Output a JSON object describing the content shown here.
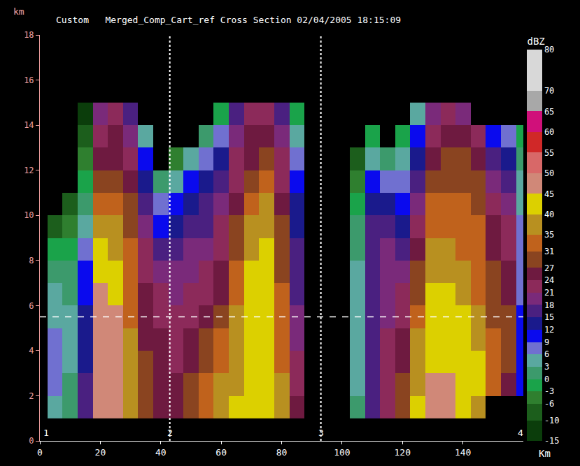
{
  "chart_data": {
    "type": "heatmap",
    "title": "Custom   Merged_Comp_Cart_ref Cross Section 02/04/2005 18:15:09",
    "x_label": "Km",
    "y_label": "km",
    "x": [
      0,
      5,
      10,
      15,
      20,
      25,
      30,
      35,
      40,
      45,
      50,
      55,
      60,
      65,
      70,
      75,
      80,
      85,
      90,
      95,
      100,
      105,
      110,
      115,
      120,
      125,
      130,
      135,
      140,
      145,
      150,
      155,
      160
    ],
    "y": [
      1.5,
      2.5,
      3.5,
      4.5,
      5.5,
      6.5,
      7.5,
      8.5,
      9.5,
      10.5,
      11.5,
      12.5,
      13.5,
      14.5
    ],
    "cells": [
      [
        null,
        null,
        null,
        null,
        null,
        null,
        null,
        null,
        null,
        null,
        null,
        null,
        null,
        null
      ],
      [
        3,
        6,
        6,
        6,
        3,
        3,
        0,
        -3,
        -10,
        null,
        null,
        null,
        null,
        null
      ],
      [
        0,
        0,
        3,
        3,
        3,
        0,
        0,
        -3,
        -6,
        -10,
        null,
        null,
        null,
        null
      ],
      [
        15,
        15,
        12,
        12,
        12,
        9,
        9,
        6,
        3,
        0,
        -3,
        -6,
        -10,
        -15
      ],
      [
        45,
        45,
        45,
        45,
        45,
        45,
        40,
        40,
        35,
        31,
        27,
        24,
        21,
        18
      ],
      [
        45,
        45,
        45,
        45,
        45,
        40,
        40,
        35,
        35,
        31,
        27,
        24,
        24,
        21
      ],
      [
        35,
        35,
        35,
        35,
        31,
        31,
        31,
        31,
        27,
        27,
        24,
        21,
        18,
        15
      ],
      [
        27,
        27,
        27,
        24,
        24,
        24,
        21,
        21,
        18,
        15,
        12,
        9,
        3,
        null
      ],
      [
        24,
        24,
        24,
        24,
        21,
        21,
        18,
        15,
        9,
        6,
        0,
        null,
        null,
        null
      ],
      [
        24,
        24,
        21,
        21,
        21,
        18,
        18,
        15,
        12,
        9,
        3,
        -6,
        null,
        null
      ],
      [
        27,
        27,
        24,
        24,
        21,
        21,
        18,
        18,
        15,
        12,
        9,
        3,
        null,
        null
      ],
      [
        31,
        31,
        27,
        27,
        24,
        21,
        21,
        18,
        15,
        15,
        12,
        6,
        0,
        null
      ],
      [
        35,
        35,
        31,
        31,
        27,
        24,
        24,
        21,
        21,
        18,
        15,
        12,
        6,
        -3
      ],
      [
        40,
        35,
        35,
        35,
        35,
        31,
        31,
        27,
        27,
        24,
        21,
        21,
        18,
        15
      ],
      [
        40,
        40,
        40,
        40,
        40,
        40,
        40,
        35,
        35,
        31,
        27,
        24,
        24,
        21
      ],
      [
        40,
        40,
        40,
        40,
        40,
        40,
        40,
        40,
        35,
        35,
        31,
        27,
        24,
        21
      ],
      [
        35,
        35,
        31,
        31,
        31,
        31,
        27,
        27,
        27,
        24,
        21,
        21,
        18,
        15
      ],
      [
        24,
        21,
        21,
        18,
        18,
        15,
        15,
        15,
        12,
        12,
        9,
        6,
        3,
        -3
      ],
      [
        null,
        null,
        null,
        null,
        null,
        null,
        null,
        null,
        null,
        null,
        null,
        null,
        null,
        null
      ],
      [
        null,
        null,
        null,
        null,
        null,
        null,
        null,
        null,
        null,
        null,
        null,
        null,
        null,
        null
      ],
      [
        null,
        null,
        null,
        null,
        null,
        null,
        null,
        null,
        null,
        null,
        null,
        null,
        null,
        null
      ],
      [
        0,
        3,
        3,
        3,
        3,
        3,
        3,
        0,
        0,
        -3,
        -6,
        -10,
        null,
        null
      ],
      [
        15,
        15,
        15,
        15,
        15,
        15,
        15,
        15,
        15,
        12,
        9,
        3,
        -3,
        null
      ],
      [
        21,
        21,
        21,
        21,
        18,
        18,
        18,
        18,
        15,
        12,
        6,
        0,
        null,
        null
      ],
      [
        27,
        27,
        24,
        24,
        21,
        21,
        18,
        15,
        12,
        9,
        6,
        3,
        -3,
        null
      ],
      [
        40,
        35,
        35,
        35,
        31,
        27,
        27,
        24,
        21,
        18,
        15,
        12,
        9,
        3
      ],
      [
        45,
        45,
        40,
        40,
        40,
        40,
        35,
        35,
        31,
        31,
        27,
        24,
        21,
        18
      ],
      [
        45,
        45,
        40,
        40,
        40,
        40,
        35,
        35,
        31,
        31,
        27,
        27,
        24,
        21
      ],
      [
        40,
        40,
        40,
        40,
        40,
        35,
        35,
        31,
        31,
        31,
        27,
        27,
        24,
        18
      ],
      [
        35,
        40,
        40,
        35,
        35,
        31,
        31,
        31,
        31,
        27,
        27,
        24,
        21,
        null
      ],
      [
        null,
        31,
        31,
        31,
        27,
        27,
        27,
        24,
        24,
        21,
        18,
        15,
        9,
        null
      ],
      [
        null,
        24,
        27,
        27,
        27,
        24,
        24,
        21,
        21,
        18,
        15,
        12,
        6,
        null
      ],
      [
        null,
        9,
        9,
        9,
        9,
        6,
        6,
        6,
        6,
        3,
        3,
        0,
        -3,
        null
      ]
    ],
    "xlim": [
      0,
      160
    ],
    "xticks": [
      0,
      20,
      40,
      60,
      80,
      100,
      120,
      140
    ],
    "ylim": [
      0,
      18
    ],
    "yticks": [
      0,
      2,
      4,
      6,
      8,
      10,
      12,
      14,
      16,
      18
    ],
    "grid": false,
    "colorbar": {
      "title": "dBZ",
      "range": [
        -15,
        80
      ],
      "ticks": [
        -15,
        -10,
        -6,
        -3,
        0,
        3,
        6,
        9,
        12,
        15,
        18,
        21,
        24,
        27,
        31,
        35,
        40,
        45,
        50,
        55,
        60,
        65,
        70,
        80
      ],
      "colors": [
        "#0b3d0b",
        "#1c5e1c",
        "#2f7f2f",
        "#1aa34a",
        "#3c9a6c",
        "#5aa8a0",
        "#7070d0",
        "#0a0aee",
        "#1a1a8c",
        "#4a2080",
        "#7a2a7a",
        "#8c2a5a",
        "#6e1a40",
        "#8a4420",
        "#c0621c",
        "#b89020",
        "#dcd000",
        "#d08878",
        "#d86868",
        "#d02828",
        "#d0107a",
        "#a8a8a8",
        "#d8d8d8"
      ]
    },
    "waypoints": [
      {
        "x": 2,
        "label": "1"
      },
      {
        "x": 43,
        "label": "2"
      },
      {
        "x": 93,
        "label": "3"
      },
      {
        "x": 159,
        "label": "4"
      }
    ],
    "dashed_lines": {
      "x": [
        43,
        93
      ],
      "y": [
        5.5
      ]
    }
  }
}
